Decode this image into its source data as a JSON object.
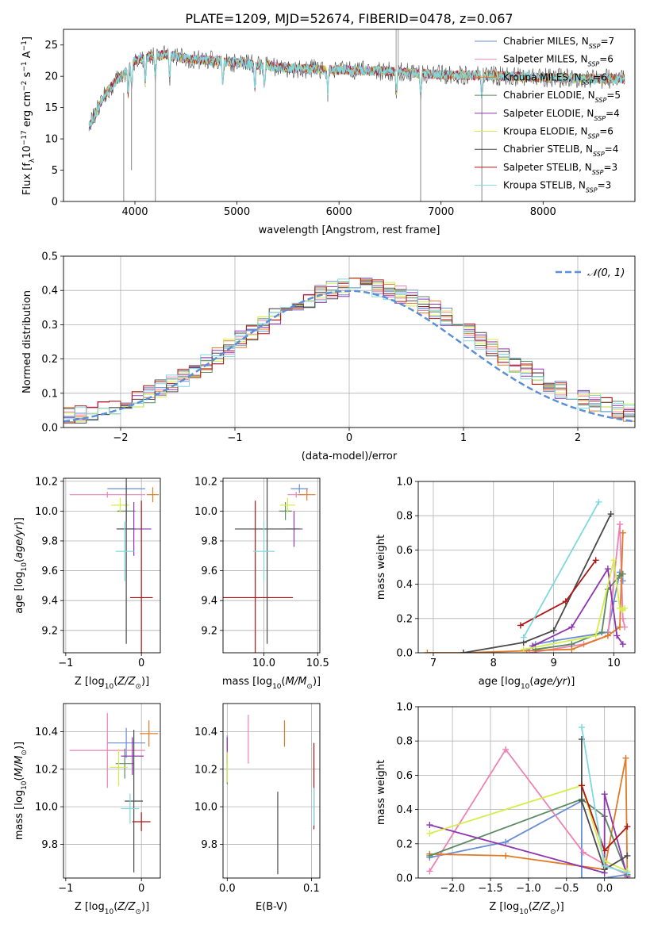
{
  "figure": {
    "title": "PLATE=1209, MJD=52674, FIBERID=0478, z=0.067"
  },
  "legend_series": [
    {
      "label": "Chabrier MILES, N",
      "sub": "SSP",
      "tail": "=7",
      "color": "#6a8fd6"
    },
    {
      "label": "Salpeter MILES, N",
      "sub": "SSP",
      "tail": "=6",
      "color": "#ee82b4"
    },
    {
      "label": "Kroupa MILES, N",
      "sub": "SSP",
      "tail": "=6",
      "color": "#e07b28"
    },
    {
      "label": "Chabrier ELODIE, N",
      "sub": "SSP",
      "tail": "=5",
      "color": "#5b8a63"
    },
    {
      "label": "Salpeter ELODIE, N",
      "sub": "SSP",
      "tail": "=4",
      "color": "#8e35b0"
    },
    {
      "label": "Kroupa ELODIE, N",
      "sub": "SSP",
      "tail": "=6",
      "color": "#d4ed48"
    },
    {
      "label": "Chabrier STELIB, N",
      "sub": "SSP",
      "tail": "=4",
      "color": "#4a4a4a"
    },
    {
      "label": "Salpeter STELIB, N",
      "sub": "SSP",
      "tail": "=3",
      "color": "#b01515"
    },
    {
      "label": "Kroupa STELIB, N",
      "sub": "SSP",
      "tail": "=3",
      "color": "#7fd8e0"
    }
  ],
  "chart_data": [
    {
      "id": "spectrum",
      "type": "line",
      "title": "PLATE=1209, MJD=52674, FIBERID=0478, z=0.067",
      "xlabel": "wavelength [Angstrom, rest frame]",
      "ylabel": "Flux [fλ10⁻¹⁷ erg cm⁻² s⁻¹ A⁻¹]",
      "xlim": [
        3300,
        8900
      ],
      "ylim": [
        0,
        27.5
      ],
      "xticks": [
        4000,
        5000,
        6000,
        7000,
        8000
      ],
      "yticks": [
        0,
        5,
        10,
        15,
        20,
        25
      ],
      "continuum": {
        "x": [
          3550,
          3600,
          3700,
          3800,
          3900,
          4000,
          4100,
          4300,
          4500,
          5000,
          5500,
          6000,
          6500,
          7000,
          7500,
          8000,
          8500,
          8800
        ],
        "y": [
          12,
          13.5,
          17,
          19,
          20.5,
          22.5,
          23,
          23.5,
          22.8,
          22.2,
          21.3,
          21,
          20.8,
          20.2,
          20.1,
          19.8,
          19.6,
          19.6
        ]
      },
      "absorption_lines": [
        3934,
        3969,
        4102,
        4200,
        4340,
        4861,
        5175,
        5270,
        5890,
        6563,
        6800,
        7400
      ],
      "spikes_down": [
        {
          "x": 3890,
          "y": 0
        },
        {
          "x": 3966,
          "y": 5
        },
        {
          "x": 4200,
          "y": 0
        },
        {
          "x": 6800,
          "y": 0
        },
        {
          "x": 7400,
          "y": 0
        }
      ],
      "spikes_up": [
        {
          "x": 6560,
          "y": 27.5
        },
        {
          "x": 6580,
          "y": 27.5
        }
      ]
    },
    {
      "id": "residuals",
      "type": "histogram",
      "xlabel": "(data-model)/error",
      "ylabel": "Normed distribution",
      "xlim": [
        -2.5,
        2.5
      ],
      "ylim": [
        0,
        0.5
      ],
      "xticks": [
        -2,
        -1,
        0,
        1,
        2
      ],
      "yticks": [
        0.0,
        0.1,
        0.2,
        0.3,
        0.4,
        0.5
      ],
      "bin_edges_start": -2.5,
      "bin_width": 0.1,
      "gaussian_label": "𝒩(0, 1)",
      "gaussian_color": "#5b8fd6"
    },
    {
      "id": "age-vs-Z",
      "type": "scatter",
      "xlabel": "Z [log₁₀(Z/Z⊙)]",
      "ylabel": "age  [log₁₀(age/yr)]",
      "xlim": [
        -1.03,
        0.25
      ],
      "ylim": [
        9.05,
        10.22
      ],
      "xticks": [
        -1,
        0
      ],
      "yticks": [
        9.2,
        9.4,
        9.6,
        9.8,
        10.0,
        10.2
      ],
      "points": [
        {
          "x": -0.2,
          "y": 10.15,
          "xerr": 0.25,
          "yerr": 0.03,
          "color": "#6a8fd6"
        },
        {
          "x": -0.45,
          "y": 10.11,
          "xerr": 0.5,
          "yerr": 0.02,
          "color": "#ee82b4"
        },
        {
          "x": 0.15,
          "y": 10.11,
          "xerr": 0.08,
          "yerr": 0.05,
          "color": "#e07b28"
        },
        {
          "x": -0.2,
          "y": 10.0,
          "xerr": 0.12,
          "yerr": 0.07,
          "color": "#5b8a63"
        },
        {
          "x": -0.1,
          "y": 9.88,
          "xerr": 0.23,
          "yerr": 0.18,
          "color": "#8e35b0"
        },
        {
          "x": -0.28,
          "y": 10.04,
          "xerr": 0.12,
          "yerr": 0.05,
          "color": "#d4ed48"
        },
        {
          "x": -0.2,
          "y": 9.88,
          "xerr": 0.12,
          "yerr": 0.77,
          "color": "#4a4a4a"
        },
        {
          "x": 0.0,
          "y": 9.42,
          "xerr": 0.15,
          "yerr": 0.65,
          "color": "#b01515"
        },
        {
          "x": -0.22,
          "y": 9.73,
          "xerr": 0.12,
          "yerr": 0.2,
          "color": "#7fd8e0"
        }
      ]
    },
    {
      "id": "age-vs-mass",
      "type": "scatter",
      "xlabel": "mass [log₁₀(M/M⊙)]",
      "ylabel": "",
      "xlim": [
        9.62,
        10.52
      ],
      "ylim": [
        9.05,
        10.22
      ],
      "xticks": [
        10.0,
        10.5
      ],
      "yticks": [
        9.2,
        9.4,
        9.6,
        9.8,
        10.0,
        10.2
      ],
      "points": [
        {
          "x": 10.33,
          "y": 10.15,
          "xerr": 0.08,
          "yerr": 0.03,
          "color": "#6a8fd6"
        },
        {
          "x": 10.3,
          "y": 10.11,
          "xerr": 0.08,
          "yerr": 0.02,
          "color": "#ee82b4"
        },
        {
          "x": 10.4,
          "y": 10.11,
          "xerr": 0.08,
          "yerr": 0.04,
          "color": "#e07b28"
        },
        {
          "x": 10.2,
          "y": 10.0,
          "xerr": 0.06,
          "yerr": 0.06,
          "color": "#5b8a63"
        },
        {
          "x": 10.28,
          "y": 9.88,
          "xerr": 0.08,
          "yerr": 0.12,
          "color": "#8e35b0"
        },
        {
          "x": 10.22,
          "y": 10.04,
          "xerr": 0.07,
          "yerr": 0.05,
          "color": "#d4ed48"
        },
        {
          "x": 10.03,
          "y": 9.88,
          "xerr": 0.3,
          "yerr": 0.77,
          "color": "#4a4a4a"
        },
        {
          "x": 9.92,
          "y": 9.42,
          "xerr": 0.35,
          "yerr": 0.65,
          "color": "#b01515"
        },
        {
          "x": 10.0,
          "y": 9.73,
          "xerr": 0.1,
          "yerr": 0.2,
          "color": "#7fd8e0"
        }
      ]
    },
    {
      "id": "massweight-vs-age",
      "type": "line",
      "xlabel": "age  [log₁₀(age/yr)]",
      "ylabel": "mass weight",
      "xlim": [
        6.75,
        10.35
      ],
      "ylim": [
        0,
        1.0
      ],
      "xticks": [
        7,
        8,
        9,
        10
      ],
      "yticks": [
        0.0,
        0.2,
        0.4,
        0.6,
        0.8,
        1.0
      ],
      "series": [
        {
          "color": "#6a8fd6",
          "x": [
            8.55,
            8.7,
            9.0,
            9.9,
            10.0,
            10.1,
            10.15
          ],
          "y": [
            0.01,
            0.05,
            0.07,
            0.12,
            0.3,
            0.47,
            0.42
          ]
        },
        {
          "color": "#ee82b4",
          "x": [
            8.6,
            9.5,
            9.9,
            10.1,
            10.15,
            10.18
          ],
          "y": [
            0.0,
            0.05,
            0.1,
            0.75,
            0.2,
            0.15
          ]
        },
        {
          "color": "#e07b28",
          "x": [
            6.9,
            7.5,
            9.3,
            9.9,
            10.1,
            10.15
          ],
          "y": [
            0.0,
            0.0,
            0.02,
            0.1,
            0.15,
            0.7
          ]
        },
        {
          "color": "#5b8a63",
          "x": [
            8.7,
            9.3,
            9.8,
            9.9,
            10.1,
            10.15
          ],
          "y": [
            0.02,
            0.05,
            0.12,
            0.37,
            0.45,
            0.46
          ]
        },
        {
          "color": "#8e35b0",
          "x": [
            8.65,
            9.3,
            9.9,
            10.05,
            10.15
          ],
          "y": [
            0.04,
            0.15,
            0.49,
            0.1,
            0.05
          ]
        },
        {
          "color": "#d4ed48",
          "x": [
            8.5,
            9.7,
            10.0,
            10.1,
            10.15,
            10.18
          ],
          "y": [
            0.02,
            0.1,
            0.54,
            0.26,
            0.25,
            0.26
          ]
        },
        {
          "color": "#4a4a4a",
          "x": [
            7.5,
            8.5,
            9.0,
            9.95
          ],
          "y": [
            0.0,
            0.06,
            0.13,
            0.81
          ]
        },
        {
          "color": "#b01515",
          "x": [
            8.45,
            9.2,
            9.7
          ],
          "y": [
            0.16,
            0.3,
            0.54
          ]
        },
        {
          "color": "#7fd8e0",
          "x": [
            8.5,
            9.75
          ],
          "y": [
            0.09,
            0.88
          ]
        }
      ]
    },
    {
      "id": "mass-vs-Z",
      "type": "scatter",
      "xlabel": "Z [log₁₀(Z/Z⊙)]",
      "ylabel": "mass [log₁₀(M/M⊙)]",
      "xlim": [
        -1.03,
        0.25
      ],
      "ylim": [
        9.62,
        10.55
      ],
      "xticks": [
        -1,
        0
      ],
      "yticks": [
        9.8,
        10.0,
        10.2,
        10.4
      ],
      "points": [
        {
          "x": -0.2,
          "y": 10.34,
          "xerr": 0.25,
          "yerr": 0.08,
          "color": "#6a8fd6"
        },
        {
          "x": -0.45,
          "y": 10.3,
          "xerr": 0.5,
          "yerr": 0.2,
          "color": "#ee82b4"
        },
        {
          "x": 0.1,
          "y": 10.39,
          "xerr": 0.12,
          "yerr": 0.07,
          "color": "#e07b28"
        },
        {
          "x": -0.22,
          "y": 10.23,
          "xerr": 0.12,
          "yerr": 0.08,
          "color": "#5b8a63"
        },
        {
          "x": -0.12,
          "y": 10.27,
          "xerr": 0.15,
          "yerr": 0.1,
          "color": "#8e35b0"
        },
        {
          "x": -0.3,
          "y": 10.21,
          "xerr": 0.12,
          "yerr": 0.1,
          "color": "#d4ed48"
        },
        {
          "x": -0.1,
          "y": 10.03,
          "xerr": 0.12,
          "yerr": 0.38,
          "color": "#4a4a4a"
        },
        {
          "x": 0.0,
          "y": 9.92,
          "xerr": 0.12,
          "yerr": 0.05,
          "color": "#b01515"
        },
        {
          "x": -0.15,
          "y": 9.99,
          "xerr": 0.12,
          "yerr": 0.08,
          "color": "#7fd8e0"
        }
      ]
    },
    {
      "id": "mass-vs-EBV",
      "type": "scatter",
      "xlabel": "E(B-V)",
      "ylabel": "",
      "xlim": [
        -0.005,
        0.11
      ],
      "ylim": [
        9.62,
        10.55
      ],
      "xticks": [
        0.0,
        0.1
      ],
      "yticks": [
        9.8,
        10.0,
        10.2,
        10.4
      ],
      "points": [
        {
          "x": 0.0,
          "y": 10.34,
          "yerr": 0.04,
          "color": "#6a8fd6"
        },
        {
          "x": 0.025,
          "y": 10.36,
          "yerr": 0.13,
          "color": "#ee82b4"
        },
        {
          "x": 0.068,
          "y": 10.39,
          "yerr": 0.07,
          "color": "#e07b28"
        },
        {
          "x": 0.0,
          "y": 10.2,
          "yerr": 0.08,
          "color": "#5b8a63"
        },
        {
          "x": 0.0,
          "y": 10.3,
          "yerr": 0.07,
          "color": "#8e35b0"
        },
        {
          "x": 0.0,
          "y": 10.21,
          "yerr": 0.08,
          "color": "#d4ed48"
        },
        {
          "x": 0.06,
          "y": 9.86,
          "yerr": 0.22,
          "color": "#4a4a4a"
        },
        {
          "x": 0.103,
          "y": 10.11,
          "yerr": 0.23,
          "color": "#b01515"
        },
        {
          "x": 0.103,
          "y": 10.0,
          "yerr": 0.1,
          "color": "#7fd8e0"
        }
      ]
    },
    {
      "id": "massweight-vs-Z",
      "type": "line",
      "xlabel": "Z [log₁₀(Z/Z⊙)]",
      "ylabel": "mass weight",
      "xlim": [
        -2.45,
        0.4
      ],
      "ylim": [
        0,
        1.0
      ],
      "xticks": [
        -2.0,
        -1.5,
        -1.0,
        -0.5,
        0.0
      ],
      "yticks": [
        0.0,
        0.2,
        0.4,
        0.6,
        0.8,
        1.0
      ],
      "series": [
        {
          "color": "#6a8fd6",
          "x": [
            -2.3,
            -1.3,
            -0.3,
            -0.3,
            0.0,
            0.3
          ],
          "y": [
            0.12,
            0.21,
            0.45,
            0.0,
            0.0,
            0.02
          ]
        },
        {
          "color": "#ee82b4",
          "x": [
            -2.3,
            -1.3,
            -0.28,
            0.0,
            0.3
          ],
          "y": [
            0.04,
            0.75,
            0.15,
            0.08,
            0.02
          ]
        },
        {
          "color": "#e07b28",
          "x": [
            -2.3,
            -1.3,
            0.0,
            0.28,
            0.3
          ],
          "y": [
            0.14,
            0.13,
            0.05,
            0.7,
            0.0
          ]
        },
        {
          "color": "#5b8a63",
          "x": [
            -2.3,
            -0.3,
            0.0,
            0.3
          ],
          "y": [
            0.13,
            0.46,
            0.36,
            0.02
          ]
        },
        {
          "color": "#8e35b0",
          "x": [
            -2.3,
            0.0,
            0.0,
            0.3
          ],
          "y": [
            0.31,
            0.03,
            0.49,
            0.01
          ]
        },
        {
          "color": "#d4ed48",
          "x": [
            -2.3,
            -0.3,
            0.0,
            0.3
          ],
          "y": [
            0.26,
            0.54,
            0.1,
            0.04
          ]
        },
        {
          "color": "#4a4a4a",
          "x": [
            -0.3,
            -0.3,
            0.0,
            0.3
          ],
          "y": [
            0.81,
            0.45,
            0.05,
            0.13
          ]
        },
        {
          "color": "#b01515",
          "x": [
            -0.3,
            0.0,
            0.3
          ],
          "y": [
            0.54,
            0.16,
            0.3
          ]
        },
        {
          "color": "#7fd8e0",
          "x": [
            -0.3,
            0.0,
            0.3
          ],
          "y": [
            0.88,
            0.07,
            0.03
          ]
        }
      ]
    }
  ]
}
